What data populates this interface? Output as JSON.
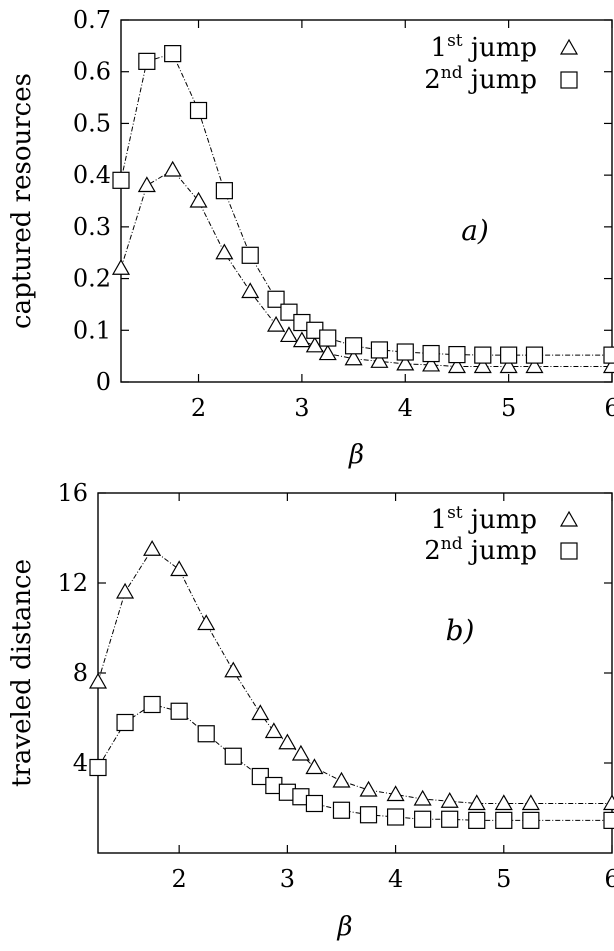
{
  "chart_data": [
    {
      "type": "line",
      "panel_label": "a)",
      "xlabel": "β",
      "ylabel": "captured resources",
      "xlim": [
        1.25,
        6
      ],
      "ylim": [
        0,
        0.7
      ],
      "xticks": [
        2,
        3,
        4,
        5,
        6
      ],
      "yticks": [
        0,
        0.1,
        0.2,
        0.3,
        0.4,
        0.5,
        0.6,
        0.7
      ],
      "xtick_labels": [
        "2",
        "3",
        "4",
        "5",
        "6"
      ],
      "ytick_labels": [
        "0",
        "0.1",
        "0.2",
        "0.3",
        "0.4",
        "0.5",
        "0.6",
        "0.7"
      ],
      "grid": false,
      "legend_position": "top-right",
      "series": [
        {
          "name": "1st jump",
          "name_base": "1",
          "name_sup": "st",
          "name_rest": " jump",
          "marker": "triangle",
          "x": [
            1.25,
            1.5,
            1.75,
            2.0,
            2.25,
            2.5,
            2.75,
            2.875,
            3.0,
            3.125,
            3.25,
            3.5,
            3.75,
            4.0,
            4.25,
            4.5,
            4.75,
            5.0,
            5.25,
            6.0
          ],
          "y": [
            0.22,
            0.38,
            0.41,
            0.35,
            0.25,
            0.175,
            0.11,
            0.09,
            0.08,
            0.07,
            0.055,
            0.045,
            0.04,
            0.035,
            0.033,
            0.03,
            0.03,
            0.03,
            0.03,
            0.03
          ]
        },
        {
          "name": "2nd jump",
          "name_base": "2",
          "name_sup": "nd",
          "name_rest": " jump",
          "marker": "square",
          "x": [
            1.25,
            1.5,
            1.75,
            2.0,
            2.25,
            2.5,
            2.75,
            2.875,
            3.0,
            3.125,
            3.25,
            3.5,
            3.75,
            4.0,
            4.25,
            4.5,
            4.75,
            5.0,
            5.25,
            6.0
          ],
          "y": [
            0.39,
            0.62,
            0.635,
            0.525,
            0.37,
            0.245,
            0.16,
            0.135,
            0.115,
            0.1,
            0.085,
            0.07,
            0.062,
            0.058,
            0.055,
            0.053,
            0.052,
            0.052,
            0.052,
            0.052
          ]
        }
      ]
    },
    {
      "type": "line",
      "panel_label": "b)",
      "xlabel": "β",
      "ylabel": "traveled distance",
      "xlim": [
        1.25,
        6
      ],
      "ylim": [
        0,
        16
      ],
      "xticks": [
        2,
        3,
        4,
        5,
        6
      ],
      "yticks": [
        4,
        8,
        12,
        16
      ],
      "xtick_labels": [
        "2",
        "3",
        "4",
        "5",
        "6"
      ],
      "ytick_labels": [
        "4",
        "8",
        "12",
        "16"
      ],
      "grid": false,
      "legend_position": "top-right",
      "series": [
        {
          "name": "1st jump",
          "name_base": "1",
          "name_sup": "st",
          "name_rest": " jump",
          "marker": "triangle",
          "x": [
            1.25,
            1.5,
            1.75,
            2.0,
            2.25,
            2.5,
            2.75,
            2.875,
            3.0,
            3.125,
            3.25,
            3.5,
            3.75,
            4.0,
            4.25,
            4.5,
            4.75,
            5.0,
            5.25,
            6.0
          ],
          "y": [
            7.6,
            11.6,
            13.5,
            12.6,
            10.2,
            8.1,
            6.2,
            5.4,
            4.9,
            4.4,
            3.8,
            3.2,
            2.8,
            2.6,
            2.4,
            2.3,
            2.2,
            2.2,
            2.2,
            2.2
          ]
        },
        {
          "name": "2nd jump",
          "name_base": "2",
          "name_sup": "nd",
          "name_rest": " jump",
          "marker": "square",
          "x": [
            1.25,
            1.5,
            1.75,
            2.0,
            2.25,
            2.5,
            2.75,
            2.875,
            3.0,
            3.125,
            3.25,
            3.5,
            3.75,
            4.0,
            4.25,
            4.5,
            4.75,
            5.0,
            5.25,
            6.0
          ],
          "y": [
            3.8,
            5.8,
            6.6,
            6.3,
            5.3,
            4.3,
            3.4,
            3.0,
            2.7,
            2.5,
            2.2,
            1.9,
            1.7,
            1.6,
            1.5,
            1.5,
            1.45,
            1.45,
            1.45,
            1.45
          ]
        }
      ]
    }
  ]
}
